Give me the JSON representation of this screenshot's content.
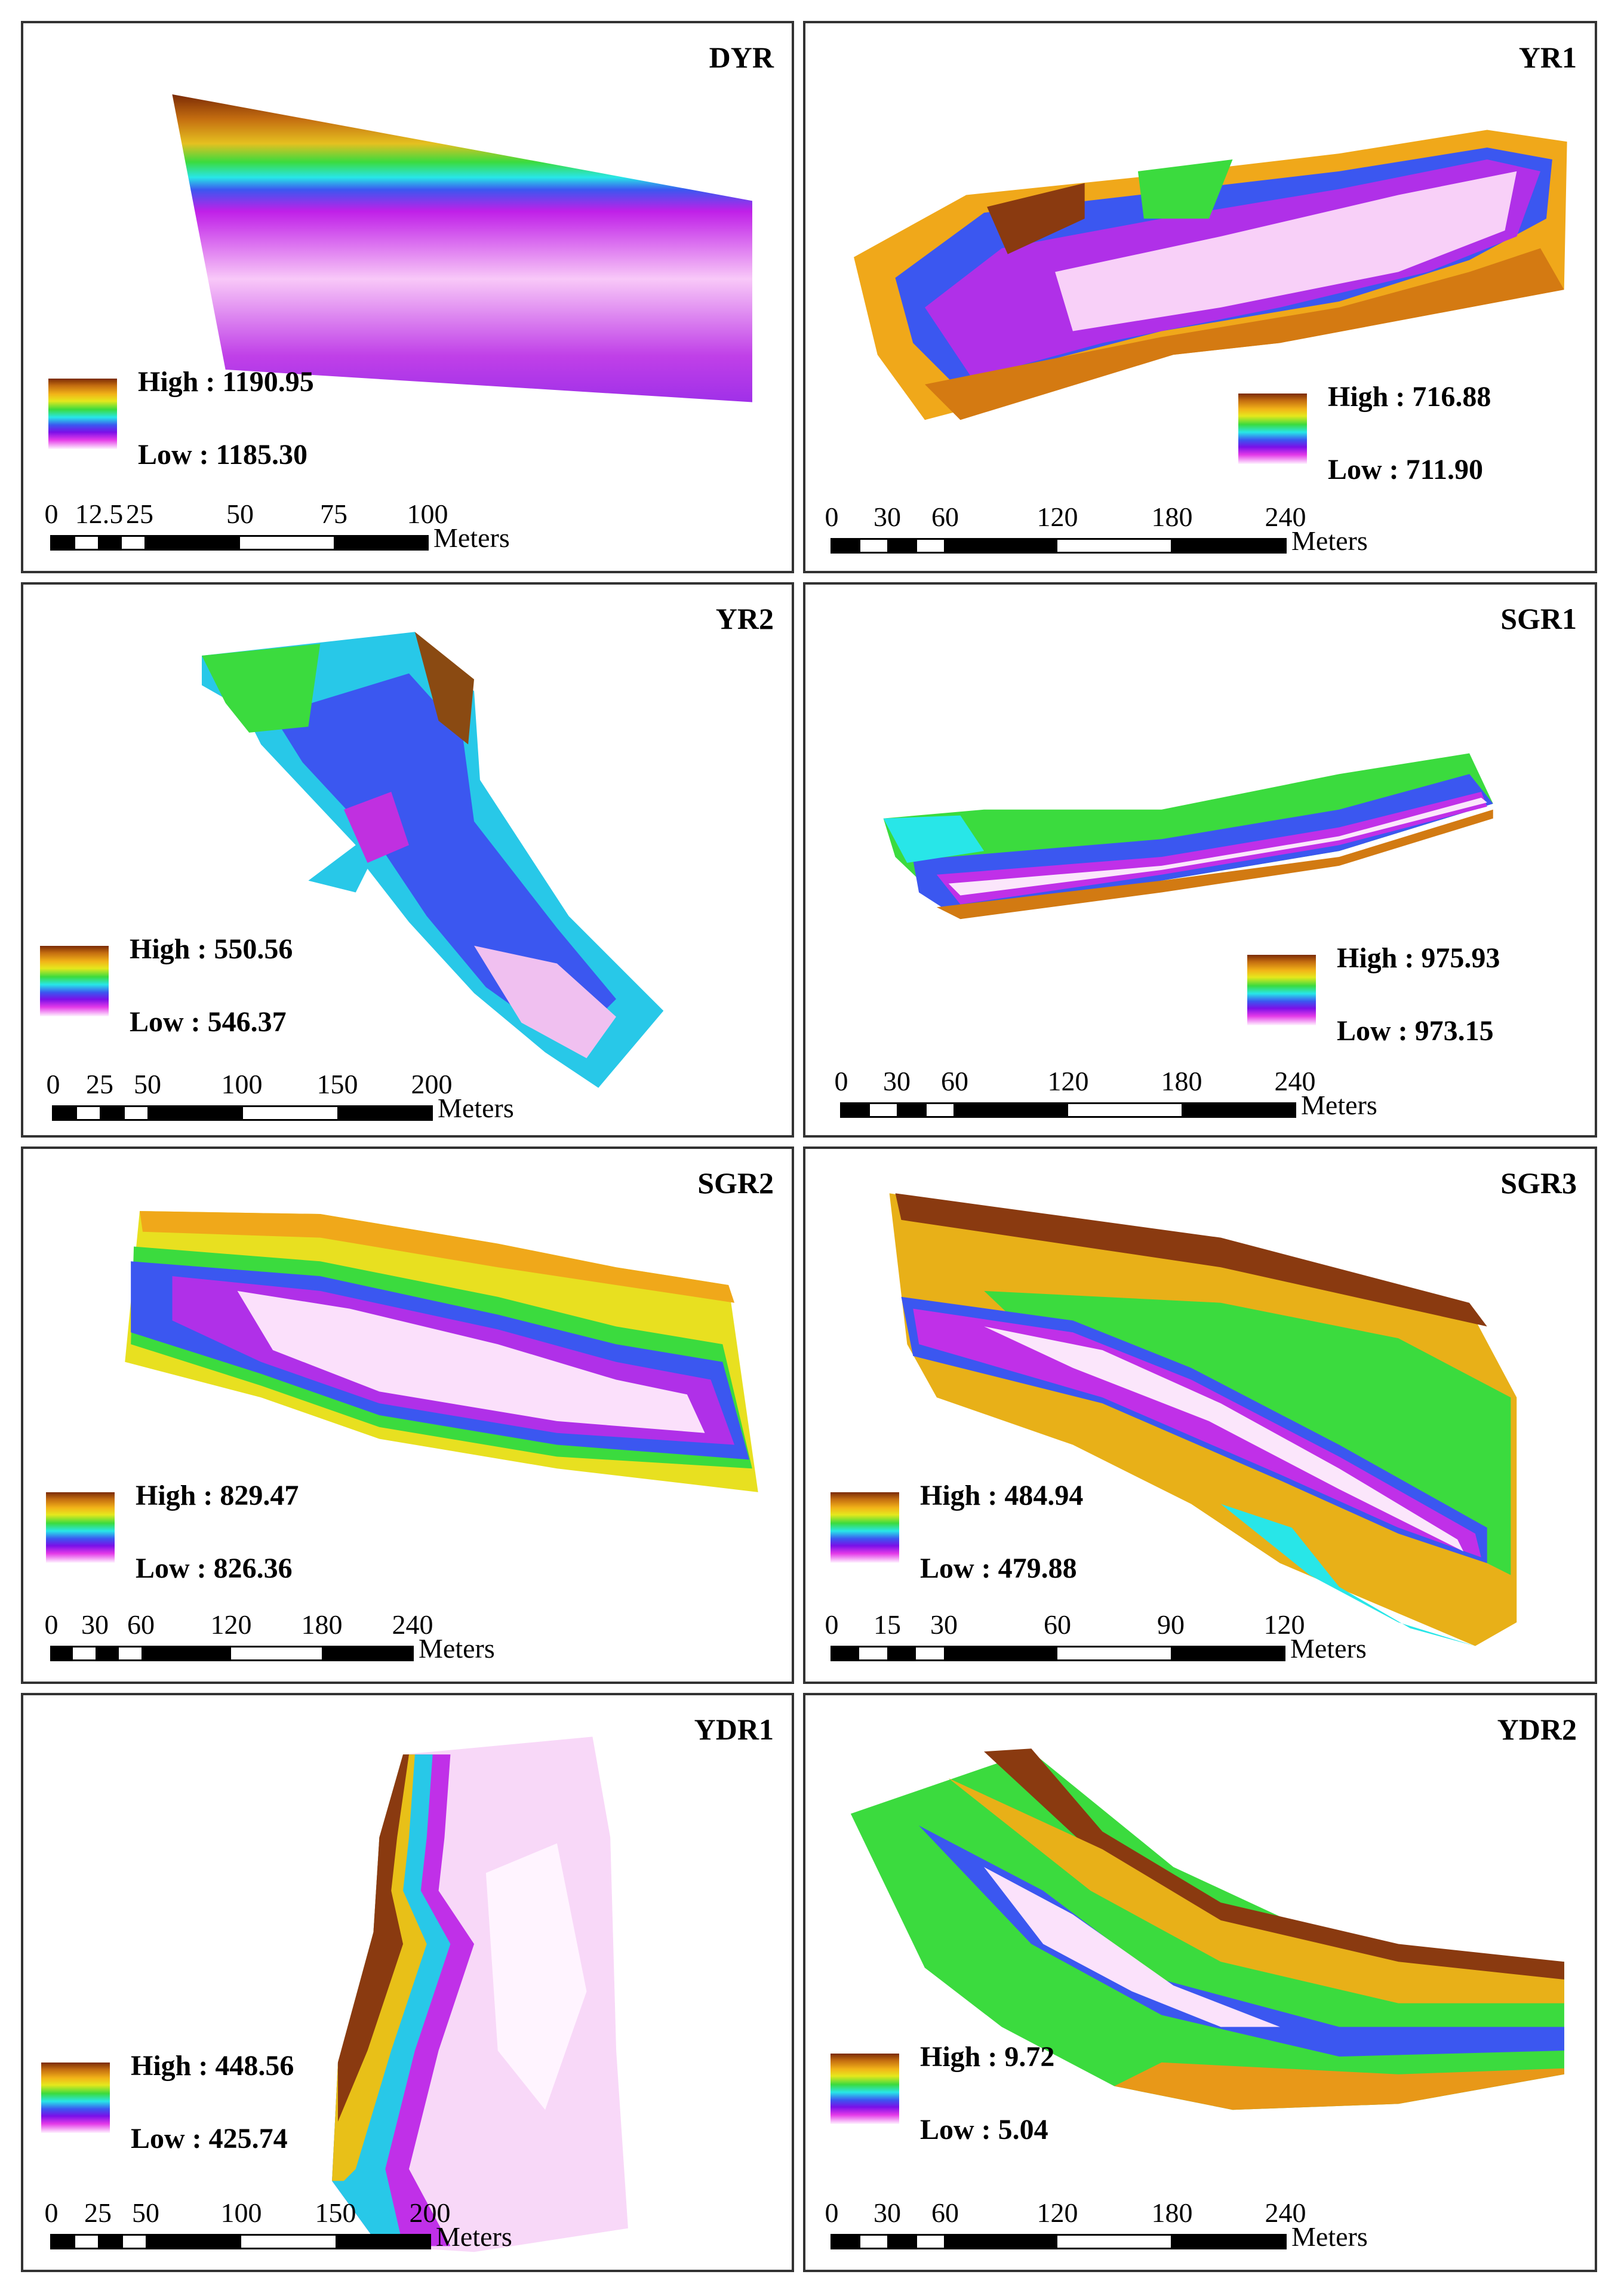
{
  "figure": {
    "panels": [
      {
        "title": "DYR",
        "legend": {
          "high_label": "High : 1190.95",
          "low_label": "Low : 1185.30"
        },
        "scale": {
          "ticks": [
            "0",
            "12.5",
            "25",
            "50",
            "75",
            "100"
          ],
          "unit": "Meters"
        }
      },
      {
        "title": "YR1",
        "legend": {
          "high_label": "High : 716.88",
          "low_label": "Low : 711.90"
        },
        "scale": {
          "ticks": [
            "0",
            "30",
            "60",
            "120",
            "180",
            "240"
          ],
          "unit": "Meters"
        }
      },
      {
        "title": "YR2",
        "legend": {
          "high_label": "High : 550.56",
          "low_label": "Low : 546.37"
        },
        "scale": {
          "ticks": [
            "0",
            "25",
            "50",
            "100",
            "150",
            "200"
          ],
          "unit": "Meters"
        }
      },
      {
        "title": "SGR1",
        "legend": {
          "high_label": "High : 975.93",
          "low_label": "Low : 973.15"
        },
        "scale": {
          "ticks": [
            "0",
            "30",
            "60",
            "120",
            "180",
            "240"
          ],
          "unit": "Meters"
        }
      },
      {
        "title": "SGR2",
        "legend": {
          "high_label": "High : 829.47",
          "low_label": "Low : 826.36"
        },
        "scale": {
          "ticks": [
            "0",
            "30",
            "60",
            "120",
            "180",
            "240"
          ],
          "unit": "Meters"
        }
      },
      {
        "title": "SGR3",
        "legend": {
          "high_label": "High : 484.94",
          "low_label": "Low : 479.88"
        },
        "scale": {
          "ticks": [
            "0",
            "15",
            "30",
            "60",
            "90",
            "120"
          ],
          "unit": "Meters"
        }
      },
      {
        "title": "YDR1",
        "legend": {
          "high_label": "High : 448.56",
          "low_label": "Low : 425.74"
        },
        "scale": {
          "ticks": [
            "0",
            "25",
            "50",
            "100",
            "150",
            "200"
          ],
          "unit": "Meters"
        }
      },
      {
        "title": "YDR2",
        "legend": {
          "high_label": "High : 9.72",
          "low_label": "Low : 5.04"
        },
        "scale": {
          "ticks": [
            "0",
            "30",
            "60",
            "120",
            "180",
            "240"
          ],
          "unit": "Meters"
        }
      }
    ]
  },
  "colors": {
    "ramp": [
      "#7a2a05",
      "#c46d10",
      "#f2b318",
      "#e5e81d",
      "#3bdb3e",
      "#28e6e8",
      "#3b57f0",
      "#7a10e8",
      "#e43ae8",
      "#fff3ff"
    ],
    "border": "#333333"
  }
}
